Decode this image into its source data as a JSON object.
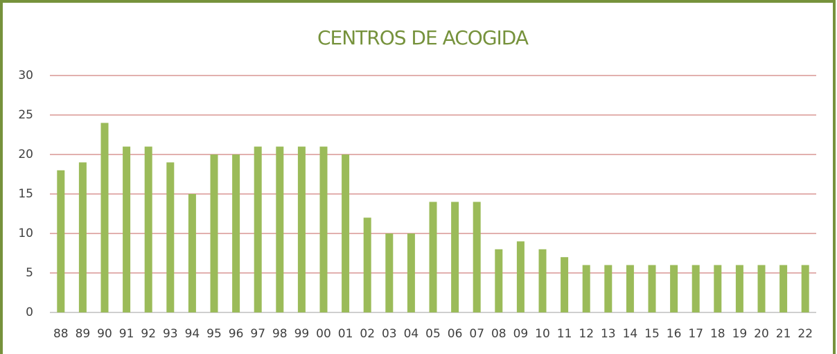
{
  "chart_data": {
    "type": "bar",
    "title": "CENTROS DE ACOGIDA",
    "categories": [
      "88",
      "89",
      "90",
      "91",
      "92",
      "93",
      "94",
      "95",
      "96",
      "97",
      "98",
      "99",
      "00",
      "01",
      "02",
      "03",
      "04",
      "05",
      "06",
      "07",
      "08",
      "09",
      "10",
      "11",
      "12",
      "13",
      "14",
      "15",
      "16",
      "17",
      "18",
      "19",
      "20",
      "21",
      "22"
    ],
    "values": [
      18,
      19,
      24,
      21,
      21,
      19,
      15,
      20,
      20,
      21,
      21,
      21,
      21,
      20,
      12,
      10,
      10,
      14,
      14,
      14,
      8,
      9,
      8,
      7,
      6,
      6,
      6,
      6,
      6,
      6,
      6,
      6,
      6,
      6,
      6
    ],
    "color": "#9bbb59",
    "ylim": [
      0,
      30
    ],
    "yticks": [
      0,
      5,
      10,
      15,
      20,
      25,
      30
    ],
    "grid": true
  }
}
